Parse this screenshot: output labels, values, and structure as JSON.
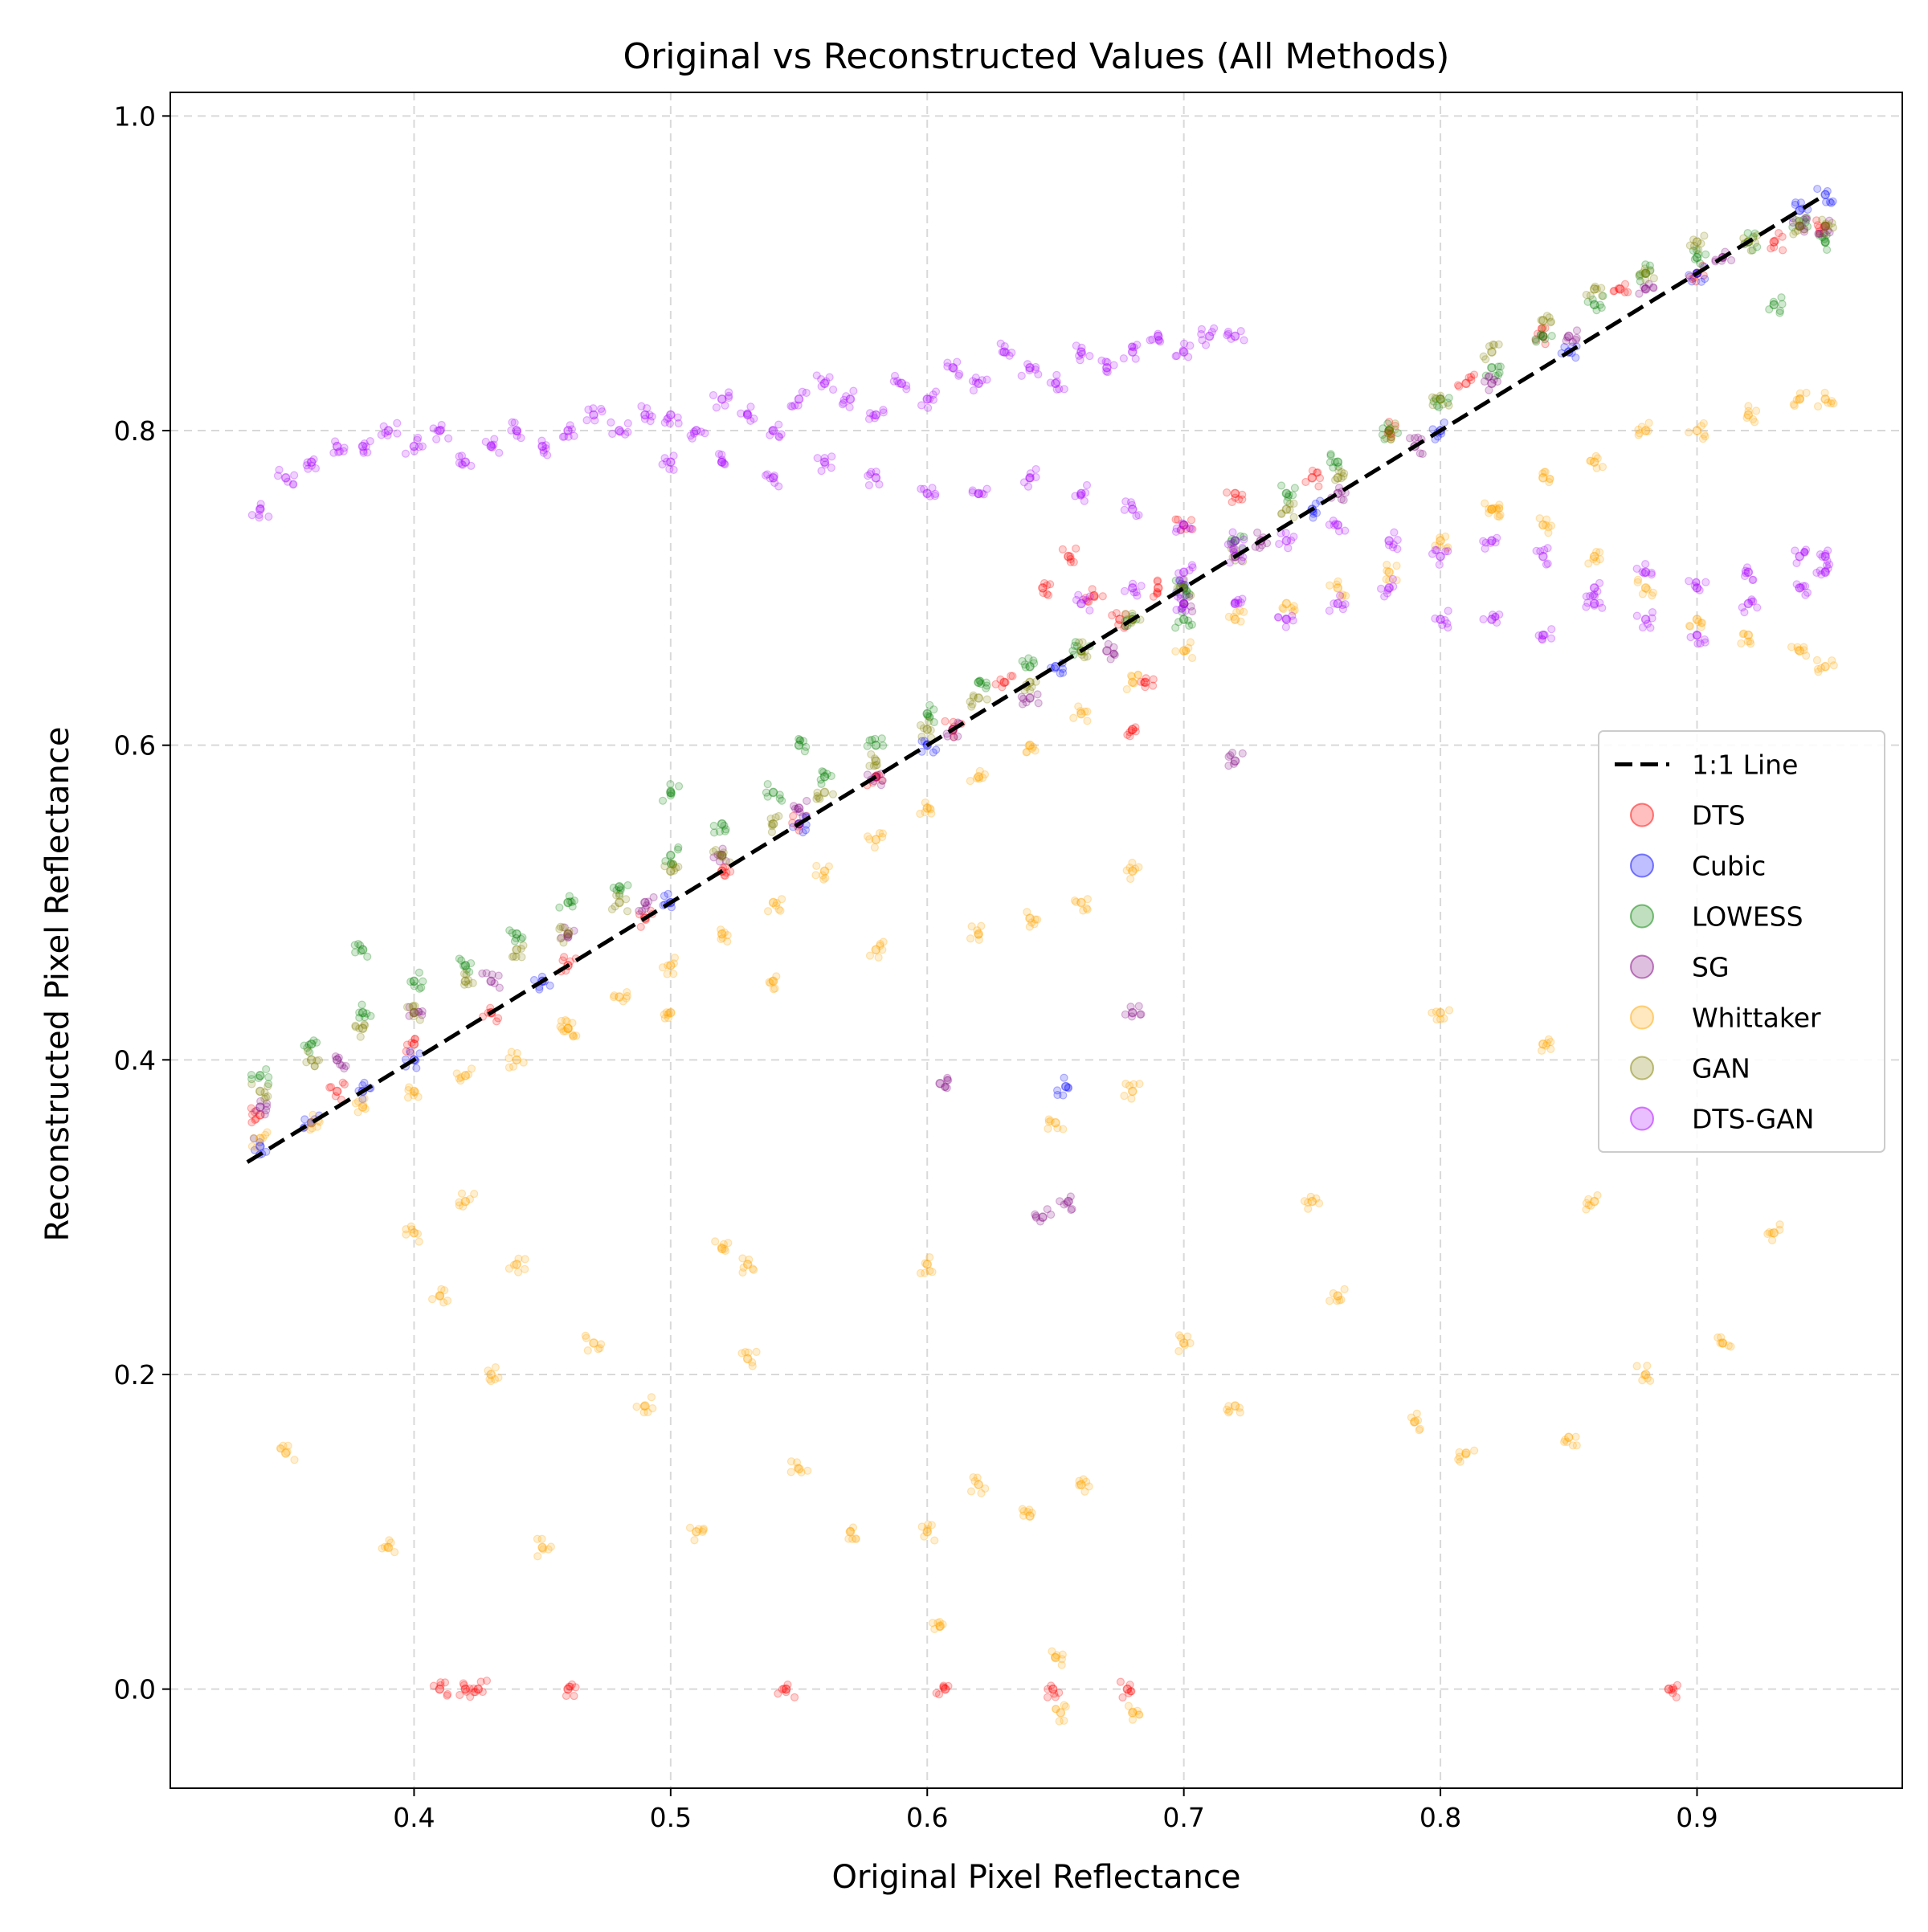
{
  "chart_data": {
    "type": "scatter",
    "title": "Original vs Reconstructed Values (All Methods)",
    "xlabel": "Original Pixel Reflectance",
    "ylabel": "Reconstructed Pixel Reflectance",
    "xlim": [
      0.305,
      0.98
    ],
    "ylim": [
      -0.063,
      1.015
    ],
    "xticks": [
      0.4,
      0.5,
      0.6,
      0.7,
      0.8,
      0.9
    ],
    "xtick_labels": [
      "0.4",
      "0.5",
      "0.6",
      "0.7",
      "0.8",
      "0.9"
    ],
    "yticks": [
      0.0,
      0.2,
      0.4,
      0.6,
      0.8,
      1.0
    ],
    "ytick_labels": [
      "0.0",
      "0.2",
      "0.4",
      "0.6",
      "0.8",
      "1.0"
    ],
    "grid": true,
    "legend_position": "center-right",
    "reference_line": {
      "name": "1:1 Line",
      "x": [
        0.335,
        0.95
      ],
      "y": [
        0.335,
        0.95
      ],
      "color": "#000000",
      "style": "dashed"
    },
    "series": [
      {
        "name": "DTS",
        "color": "#ff0000",
        "x": [
          0.34,
          0.37,
          0.4,
          0.43,
          0.46,
          0.49,
          0.52,
          0.55,
          0.58,
          0.61,
          0.63,
          0.645,
          0.655,
          0.665,
          0.675,
          0.68,
          0.685,
          0.69,
          0.7,
          0.72,
          0.75,
          0.78,
          0.81,
          0.84,
          0.87,
          0.9,
          0.93,
          0.95,
          0.41,
          0.42,
          0.425,
          0.46,
          0.545,
          0.607,
          0.649,
          0.678,
          0.889
        ],
        "y": [
          0.365,
          0.38,
          0.41,
          0.43,
          0.46,
          0.49,
          0.52,
          0.55,
          0.58,
          0.61,
          0.64,
          0.7,
          0.72,
          0.695,
          0.68,
          0.61,
          0.64,
          0.7,
          0.74,
          0.76,
          0.77,
          0.8,
          0.83,
          0.86,
          0.89,
          0.9,
          0.92,
          0.93,
          0.0,
          0.0,
          0.0,
          0.0,
          0.0,
          0.0,
          0.0,
          0.0,
          0.0
        ]
      },
      {
        "name": "Cubic",
        "color": "#0000ff",
        "x": [
          0.34,
          0.36,
          0.38,
          0.4,
          0.45,
          0.5,
          0.55,
          0.6,
          0.65,
          0.7,
          0.75,
          0.8,
          0.85,
          0.9,
          0.94,
          0.95,
          0.654
        ],
        "y": [
          0.345,
          0.36,
          0.38,
          0.4,
          0.45,
          0.5,
          0.55,
          0.6,
          0.65,
          0.7,
          0.75,
          0.8,
          0.85,
          0.9,
          0.94,
          0.95,
          0.383
        ]
      },
      {
        "name": "LOWESS",
        "color": "#008000",
        "x": [
          0.34,
          0.36,
          0.38,
          0.4,
          0.42,
          0.44,
          0.46,
          0.48,
          0.5,
          0.52,
          0.54,
          0.56,
          0.58,
          0.6,
          0.62,
          0.64,
          0.66,
          0.68,
          0.7,
          0.72,
          0.74,
          0.76,
          0.78,
          0.8,
          0.82,
          0.84,
          0.86,
          0.88,
          0.9,
          0.92,
          0.94,
          0.95,
          0.38,
          0.5,
          0.55,
          0.7,
          0.93
        ],
        "y": [
          0.39,
          0.41,
          0.43,
          0.45,
          0.46,
          0.48,
          0.5,
          0.51,
          0.53,
          0.55,
          0.57,
          0.58,
          0.6,
          0.62,
          0.64,
          0.65,
          0.66,
          0.68,
          0.7,
          0.73,
          0.76,
          0.78,
          0.8,
          0.82,
          0.84,
          0.86,
          0.88,
          0.9,
          0.91,
          0.92,
          0.93,
          0.92,
          0.47,
          0.57,
          0.6,
          0.68,
          0.88
        ]
      },
      {
        "name": "SG",
        "color": "#800080",
        "x": [
          0.34,
          0.37,
          0.4,
          0.43,
          0.46,
          0.49,
          0.52,
          0.55,
          0.58,
          0.61,
          0.64,
          0.67,
          0.7,
          0.73,
          0.76,
          0.79,
          0.82,
          0.85,
          0.88,
          0.91,
          0.94,
          0.95,
          0.645,
          0.655,
          0.605,
          0.68,
          0.72
        ],
        "y": [
          0.37,
          0.4,
          0.43,
          0.45,
          0.48,
          0.5,
          0.53,
          0.56,
          0.58,
          0.61,
          0.63,
          0.66,
          0.69,
          0.73,
          0.76,
          0.79,
          0.83,
          0.86,
          0.89,
          0.91,
          0.93,
          0.93,
          0.3,
          0.31,
          0.385,
          0.43,
          0.59
        ]
      },
      {
        "name": "Whittaker",
        "color": "#ffa500",
        "x": [
          0.34,
          0.36,
          0.38,
          0.4,
          0.42,
          0.44,
          0.46,
          0.48,
          0.5,
          0.52,
          0.54,
          0.56,
          0.58,
          0.6,
          0.62,
          0.64,
          0.66,
          0.68,
          0.7,
          0.72,
          0.74,
          0.76,
          0.78,
          0.8,
          0.82,
          0.84,
          0.86,
          0.88,
          0.9,
          0.92,
          0.94,
          0.95,
          0.46,
          0.5,
          0.54,
          0.58,
          0.62,
          0.64,
          0.66,
          0.68,
          0.82,
          0.84,
          0.86,
          0.88,
          0.9,
          0.92,
          0.94,
          0.95,
          0.35,
          0.39,
          0.41,
          0.43,
          0.45,
          0.47,
          0.49,
          0.51,
          0.53,
          0.55,
          0.57,
          0.6,
          0.62,
          0.64,
          0.66,
          0.7,
          0.72,
          0.76,
          0.79,
          0.81,
          0.85,
          0.88,
          0.91,
          0.93,
          0.42,
          0.44,
          0.52,
          0.6,
          0.65,
          0.68,
          0.75,
          0.8,
          0.84,
          0.86,
          0.4,
          0.53,
          0.65,
          0.652,
          0.605,
          0.68
        ],
        "y": [
          0.35,
          0.36,
          0.37,
          0.38,
          0.39,
          0.4,
          0.42,
          0.44,
          0.46,
          0.48,
          0.5,
          0.52,
          0.54,
          0.56,
          0.58,
          0.6,
          0.62,
          0.64,
          0.66,
          0.68,
          0.69,
          0.7,
          0.71,
          0.73,
          0.75,
          0.77,
          0.78,
          0.8,
          0.8,
          0.81,
          0.82,
          0.82,
          0.42,
          0.43,
          0.45,
          0.47,
          0.48,
          0.49,
          0.5,
          0.52,
          0.75,
          0.74,
          0.72,
          0.7,
          0.68,
          0.67,
          0.66,
          0.65,
          0.15,
          0.09,
          0.25,
          0.2,
          0.09,
          0.22,
          0.18,
          0.1,
          0.21,
          0.14,
          0.1,
          0.1,
          0.13,
          0.11,
          0.13,
          0.22,
          0.18,
          0.25,
          0.17,
          0.15,
          0.16,
          0.2,
          0.22,
          0.29,
          0.31,
          0.27,
          0.28,
          0.27,
          0.36,
          0.38,
          0.31,
          0.43,
          0.41,
          0.31,
          0.29,
          0.27,
          0.02,
          -0.015,
          0.04,
          -0.015
        ]
      },
      {
        "name": "GAN",
        "color": "#808000",
        "x": [
          0.34,
          0.36,
          0.38,
          0.4,
          0.42,
          0.44,
          0.46,
          0.48,
          0.5,
          0.52,
          0.54,
          0.56,
          0.58,
          0.6,
          0.62,
          0.64,
          0.66,
          0.68,
          0.7,
          0.72,
          0.74,
          0.76,
          0.78,
          0.8,
          0.82,
          0.84,
          0.86,
          0.88,
          0.9,
          0.92,
          0.94,
          0.95
        ],
        "y": [
          0.38,
          0.4,
          0.42,
          0.43,
          0.45,
          0.47,
          0.48,
          0.5,
          0.52,
          0.53,
          0.55,
          0.57,
          0.59,
          0.61,
          0.63,
          0.64,
          0.66,
          0.68,
          0.7,
          0.72,
          0.75,
          0.77,
          0.8,
          0.82,
          0.85,
          0.87,
          0.89,
          0.9,
          0.92,
          0.92,
          0.93,
          0.93
        ]
      },
      {
        "name": "DTS-GAN",
        "color": "#aa00ff",
        "x": [
          0.34,
          0.35,
          0.36,
          0.37,
          0.38,
          0.39,
          0.4,
          0.41,
          0.42,
          0.43,
          0.44,
          0.45,
          0.46,
          0.47,
          0.48,
          0.49,
          0.5,
          0.51,
          0.52,
          0.53,
          0.54,
          0.55,
          0.56,
          0.57,
          0.58,
          0.59,
          0.6,
          0.61,
          0.62,
          0.63,
          0.64,
          0.65,
          0.66,
          0.67,
          0.68,
          0.69,
          0.7,
          0.71,
          0.72,
          0.5,
          0.52,
          0.54,
          0.56,
          0.58,
          0.6,
          0.62,
          0.64,
          0.66,
          0.68,
          0.7,
          0.72,
          0.66,
          0.68,
          0.7,
          0.72,
          0.74,
          0.76,
          0.78,
          0.8,
          0.82,
          0.84,
          0.86,
          0.88,
          0.9,
          0.92,
          0.94,
          0.95,
          0.7,
          0.72,
          0.74,
          0.76,
          0.78,
          0.8,
          0.82,
          0.84,
          0.86,
          0.88,
          0.9,
          0.92,
          0.94,
          0.95
        ],
        "y": [
          0.75,
          0.77,
          0.78,
          0.79,
          0.79,
          0.8,
          0.79,
          0.8,
          0.78,
          0.79,
          0.8,
          0.79,
          0.8,
          0.81,
          0.8,
          0.81,
          0.81,
          0.8,
          0.82,
          0.81,
          0.8,
          0.82,
          0.83,
          0.82,
          0.81,
          0.83,
          0.82,
          0.84,
          0.83,
          0.85,
          0.84,
          0.83,
          0.85,
          0.84,
          0.85,
          0.86,
          0.85,
          0.86,
          0.86,
          0.78,
          0.78,
          0.77,
          0.78,
          0.77,
          0.76,
          0.76,
          0.77,
          0.76,
          0.75,
          0.74,
          0.73,
          0.69,
          0.7,
          0.71,
          0.72,
          0.73,
          0.74,
          0.73,
          0.72,
          0.73,
          0.72,
          0.7,
          0.71,
          0.7,
          0.71,
          0.72,
          0.72,
          0.69,
          0.69,
          0.68,
          0.69,
          0.7,
          0.68,
          0.68,
          0.67,
          0.69,
          0.68,
          0.67,
          0.69,
          0.7,
          0.71
        ]
      }
    ]
  }
}
